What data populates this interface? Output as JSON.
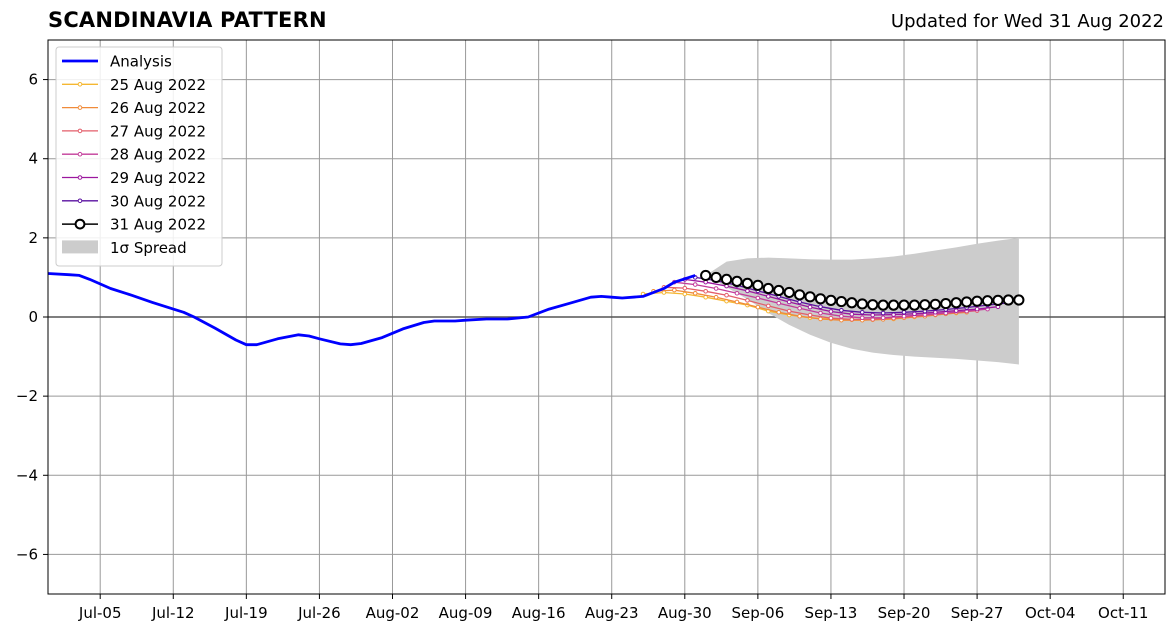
{
  "header": {
    "title": "SCANDINAVIA PATTERN",
    "updated": "Updated for Wed 31 Aug 2022"
  },
  "chart_data": {
    "type": "line",
    "title": "SCANDINAVIA PATTERN",
    "xlabel": "",
    "ylabel": "",
    "x_range": [
      "2022-06-30",
      "2022-10-15"
    ],
    "ylim": [
      -7,
      7
    ],
    "y_ticks": [
      -6,
      -4,
      -2,
      0,
      2,
      4,
      6
    ],
    "x_ticks": [
      {
        "date": "2022-07-05",
        "label": "Jul-05"
      },
      {
        "date": "2022-07-12",
        "label": "Jul-12"
      },
      {
        "date": "2022-07-19",
        "label": "Jul-19"
      },
      {
        "date": "2022-07-26",
        "label": "Jul-26"
      },
      {
        "date": "2022-08-02",
        "label": "Aug-02"
      },
      {
        "date": "2022-08-09",
        "label": "Aug-09"
      },
      {
        "date": "2022-08-16",
        "label": "Aug-16"
      },
      {
        "date": "2022-08-23",
        "label": "Aug-23"
      },
      {
        "date": "2022-08-30",
        "label": "Aug-30"
      },
      {
        "date": "2022-09-06",
        "label": "Sep-06"
      },
      {
        "date": "2022-09-13",
        "label": "Sep-13"
      },
      {
        "date": "2022-09-20",
        "label": "Sep-20"
      },
      {
        "date": "2022-09-27",
        "label": "Sep-27"
      },
      {
        "date": "2022-10-04",
        "label": "Oct-04"
      },
      {
        "date": "2022-10-11",
        "label": "Oct-11"
      }
    ],
    "grid": true,
    "legend_position": "top-left",
    "analysis": {
      "name": "Analysis",
      "color": "#0000ff",
      "x": [
        "2022-06-30",
        "2022-07-02",
        "2022-07-03",
        "2022-07-04",
        "2022-07-06",
        "2022-07-08",
        "2022-07-10",
        "2022-07-12",
        "2022-07-13",
        "2022-07-14",
        "2022-07-16",
        "2022-07-18",
        "2022-07-19",
        "2022-07-20",
        "2022-07-22",
        "2022-07-24",
        "2022-07-25",
        "2022-07-26",
        "2022-07-28",
        "2022-07-29",
        "2022-07-30",
        "2022-08-01",
        "2022-08-03",
        "2022-08-05",
        "2022-08-06",
        "2022-08-08",
        "2022-08-09",
        "2022-08-11",
        "2022-08-13",
        "2022-08-15",
        "2022-08-17",
        "2022-08-19",
        "2022-08-21",
        "2022-08-22",
        "2022-08-23",
        "2022-08-24",
        "2022-08-26",
        "2022-08-28",
        "2022-08-29",
        "2022-08-31"
      ],
      "y": [
        1.1,
        1.07,
        1.05,
        0.95,
        0.72,
        0.55,
        0.37,
        0.2,
        0.12,
        0.0,
        -0.28,
        -0.58,
        -0.7,
        -0.7,
        -0.55,
        -0.45,
        -0.48,
        -0.55,
        -0.68,
        -0.7,
        -0.67,
        -0.52,
        -0.3,
        -0.14,
        -0.1,
        -0.1,
        -0.08,
        -0.05,
        -0.05,
        0.0,
        0.2,
        0.35,
        0.5,
        0.52,
        0.5,
        0.48,
        0.52,
        0.72,
        0.88,
        1.05
      ]
    },
    "series": [
      {
        "name": "25 Aug 2022",
        "color": "#f5b731",
        "x": [
          "2022-08-26",
          "2022-08-28",
          "2022-08-30",
          "2022-09-01",
          "2022-09-03",
          "2022-09-05",
          "2022-09-07",
          "2022-09-09",
          "2022-09-11",
          "2022-09-13",
          "2022-09-15",
          "2022-09-17",
          "2022-09-19",
          "2022-09-21",
          "2022-09-23",
          "2022-09-25"
        ],
        "y": [
          0.58,
          0.62,
          0.58,
          0.5,
          0.4,
          0.3,
          0.15,
          0.05,
          -0.02,
          -0.05,
          -0.07,
          -0.07,
          -0.05,
          0.0,
          0.05,
          0.1
        ]
      },
      {
        "name": "26 Aug 2022",
        "color": "#f08b3a",
        "x": [
          "2022-08-27",
          "2022-08-29",
          "2022-08-31",
          "2022-09-02",
          "2022-09-04",
          "2022-09-06",
          "2022-09-08",
          "2022-09-10",
          "2022-09-12",
          "2022-09-14",
          "2022-09-16",
          "2022-09-18",
          "2022-09-20",
          "2022-09-22",
          "2022-09-24",
          "2022-09-26"
        ],
        "y": [
          0.65,
          0.68,
          0.6,
          0.5,
          0.38,
          0.25,
          0.12,
          0.02,
          -0.05,
          -0.08,
          -0.08,
          -0.06,
          -0.02,
          0.02,
          0.08,
          0.12
        ]
      },
      {
        "name": "27 Aug 2022",
        "color": "#e35d6a",
        "x": [
          "2022-08-28",
          "2022-08-30",
          "2022-09-01",
          "2022-09-03",
          "2022-09-05",
          "2022-09-07",
          "2022-09-09",
          "2022-09-11",
          "2022-09-13",
          "2022-09-15",
          "2022-09-17",
          "2022-09-19",
          "2022-09-21",
          "2022-09-23",
          "2022-09-25",
          "2022-09-27"
        ],
        "y": [
          0.75,
          0.73,
          0.65,
          0.55,
          0.42,
          0.28,
          0.15,
          0.05,
          -0.03,
          -0.06,
          -0.06,
          -0.03,
          0.02,
          0.06,
          0.12,
          0.16
        ]
      },
      {
        "name": "28 Aug 2022",
        "color": "#c33c9a",
        "x": [
          "2022-08-29",
          "2022-08-31",
          "2022-09-02",
          "2022-09-04",
          "2022-09-06",
          "2022-09-08",
          "2022-09-10",
          "2022-09-12",
          "2022-09-14",
          "2022-09-16",
          "2022-09-18",
          "2022-09-20",
          "2022-09-22",
          "2022-09-24",
          "2022-09-26",
          "2022-09-28"
        ],
        "y": [
          0.88,
          0.82,
          0.72,
          0.6,
          0.48,
          0.35,
          0.22,
          0.1,
          0.02,
          -0.02,
          -0.02,
          0.02,
          0.06,
          0.1,
          0.15,
          0.2
        ]
      },
      {
        "name": "29 Aug 2022",
        "color": "#9c179e",
        "x": [
          "2022-08-30",
          "2022-09-01",
          "2022-09-03",
          "2022-09-05",
          "2022-09-07",
          "2022-09-09",
          "2022-09-11",
          "2022-09-13",
          "2022-09-15",
          "2022-09-17",
          "2022-09-19",
          "2022-09-21",
          "2022-09-23",
          "2022-09-25",
          "2022-09-27",
          "2022-09-29"
        ],
        "y": [
          0.95,
          0.88,
          0.78,
          0.66,
          0.52,
          0.38,
          0.25,
          0.14,
          0.07,
          0.05,
          0.06,
          0.08,
          0.12,
          0.16,
          0.2,
          0.26
        ]
      },
      {
        "name": "30 Aug 2022",
        "color": "#5a10a0",
        "x": [
          "2022-08-31",
          "2022-09-02",
          "2022-09-04",
          "2022-09-06",
          "2022-09-08",
          "2022-09-10",
          "2022-09-12",
          "2022-09-14",
          "2022-09-16",
          "2022-09-18",
          "2022-09-20",
          "2022-09-22",
          "2022-09-24",
          "2022-09-26",
          "2022-09-28",
          "2022-09-30"
        ],
        "y": [
          1.0,
          0.92,
          0.8,
          0.66,
          0.52,
          0.38,
          0.26,
          0.17,
          0.12,
          0.1,
          0.12,
          0.15,
          0.19,
          0.24,
          0.3,
          0.36
        ]
      },
      {
        "name": "31 Aug 2022",
        "color": "#000000",
        "x": [
          "2022-09-01",
          "2022-09-02",
          "2022-09-03",
          "2022-09-04",
          "2022-09-05",
          "2022-09-06",
          "2022-09-07",
          "2022-09-08",
          "2022-09-09",
          "2022-09-10",
          "2022-09-11",
          "2022-09-12",
          "2022-09-13",
          "2022-09-14",
          "2022-09-15",
          "2022-09-16",
          "2022-09-17",
          "2022-09-18",
          "2022-09-19",
          "2022-09-20",
          "2022-09-21",
          "2022-09-22",
          "2022-09-23",
          "2022-09-24",
          "2022-09-25",
          "2022-09-26",
          "2022-09-27",
          "2022-09-28",
          "2022-09-29",
          "2022-09-30",
          "2022-10-01"
        ],
        "y": [
          1.05,
          1.0,
          0.95,
          0.9,
          0.85,
          0.8,
          0.72,
          0.67,
          0.62,
          0.56,
          0.51,
          0.46,
          0.42,
          0.39,
          0.36,
          0.33,
          0.31,
          0.3,
          0.3,
          0.3,
          0.3,
          0.31,
          0.32,
          0.34,
          0.36,
          0.38,
          0.4,
          0.41,
          0.42,
          0.43,
          0.43
        ]
      }
    ],
    "spread": {
      "name": "1σ Spread",
      "color": "#cccccc",
      "x": [
        "2022-09-01",
        "2022-09-03",
        "2022-09-05",
        "2022-09-07",
        "2022-09-09",
        "2022-09-11",
        "2022-09-13",
        "2022-09-15",
        "2022-09-17",
        "2022-09-19",
        "2022-09-21",
        "2022-09-23",
        "2022-09-25",
        "2022-09-27",
        "2022-09-29",
        "2022-10-01"
      ],
      "upper": [
        1.05,
        1.4,
        1.48,
        1.5,
        1.48,
        1.46,
        1.45,
        1.45,
        1.48,
        1.53,
        1.6,
        1.68,
        1.76,
        1.85,
        1.93,
        2.0
      ],
      "lower": [
        1.05,
        0.75,
        0.45,
        0.1,
        -0.2,
        -0.45,
        -0.65,
        -0.8,
        -0.9,
        -0.96,
        -1.0,
        -1.03,
        -1.06,
        -1.1,
        -1.14,
        -1.2
      ]
    },
    "legend": [
      {
        "label": "Analysis",
        "kind": "thick",
        "color": "#0000ff"
      },
      {
        "label": "25 Aug 2022",
        "kind": "dot",
        "color": "#f5b731"
      },
      {
        "label": "26 Aug 2022",
        "kind": "dot",
        "color": "#f08b3a"
      },
      {
        "label": "27 Aug 2022",
        "kind": "dot",
        "color": "#e35d6a"
      },
      {
        "label": "28 Aug 2022",
        "kind": "dot",
        "color": "#c33c9a"
      },
      {
        "label": "29 Aug 2022",
        "kind": "dot",
        "color": "#9c179e"
      },
      {
        "label": "30 Aug 2022",
        "kind": "dot",
        "color": "#5a10a0"
      },
      {
        "label": "31 Aug 2022",
        "kind": "circle",
        "color": "#000000"
      },
      {
        "label": "1σ Spread",
        "kind": "patch",
        "color": "#cccccc"
      }
    ]
  }
}
